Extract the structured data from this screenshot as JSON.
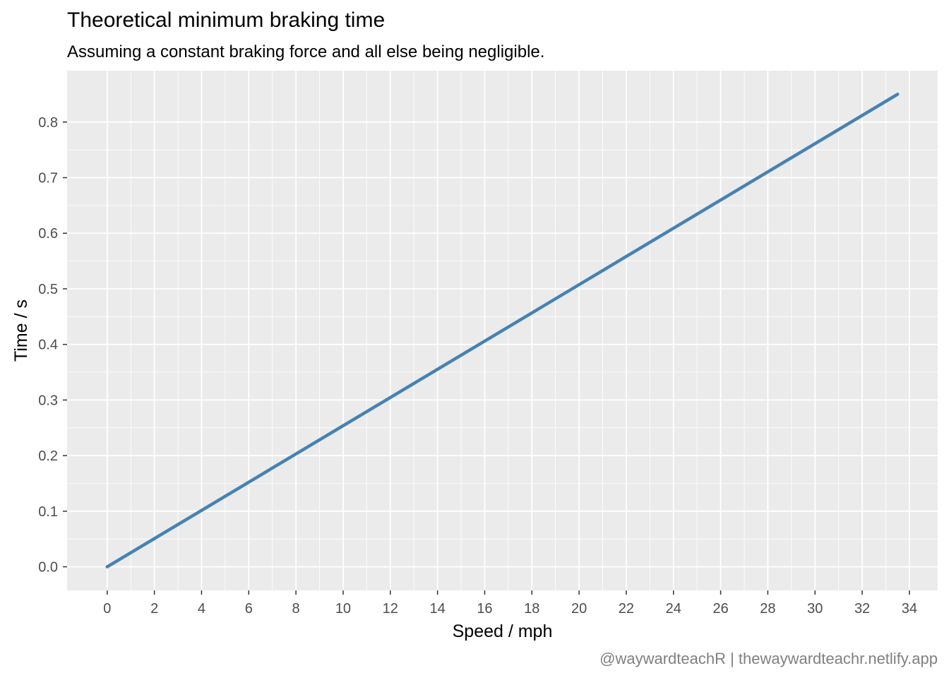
{
  "chart_data": {
    "type": "line",
    "title": "Theoretical minimum braking time",
    "subtitle": "Assuming a constant braking force and all else being negligible.",
    "xlabel": "Speed / mph",
    "ylabel": "Time / s",
    "caption": "@waywardteachR | thewaywardteachr.netlify.app",
    "xlim": [
      -1.7,
      35.2
    ],
    "ylim": [
      -0.0425,
      0.8925
    ],
    "x_ticks": [
      "0",
      "2",
      "4",
      "6",
      "8",
      "10",
      "12",
      "14",
      "16",
      "18",
      "20",
      "22",
      "24",
      "26",
      "28",
      "30",
      "32",
      "34"
    ],
    "y_ticks": [
      "0.0",
      "0.1",
      "0.2",
      "0.3",
      "0.4",
      "0.5",
      "0.6",
      "0.7",
      "0.8"
    ],
    "grid": true,
    "series": [
      {
        "x": [
          0,
          33.5
        ],
        "y": [
          0,
          0.85
        ]
      }
    ],
    "colors": {
      "panel": "#EBEBEB",
      "grid": "#FFFFFF",
      "line": "#4682B4",
      "tick_text": "#4D4D4D",
      "tick": "#333333"
    }
  }
}
